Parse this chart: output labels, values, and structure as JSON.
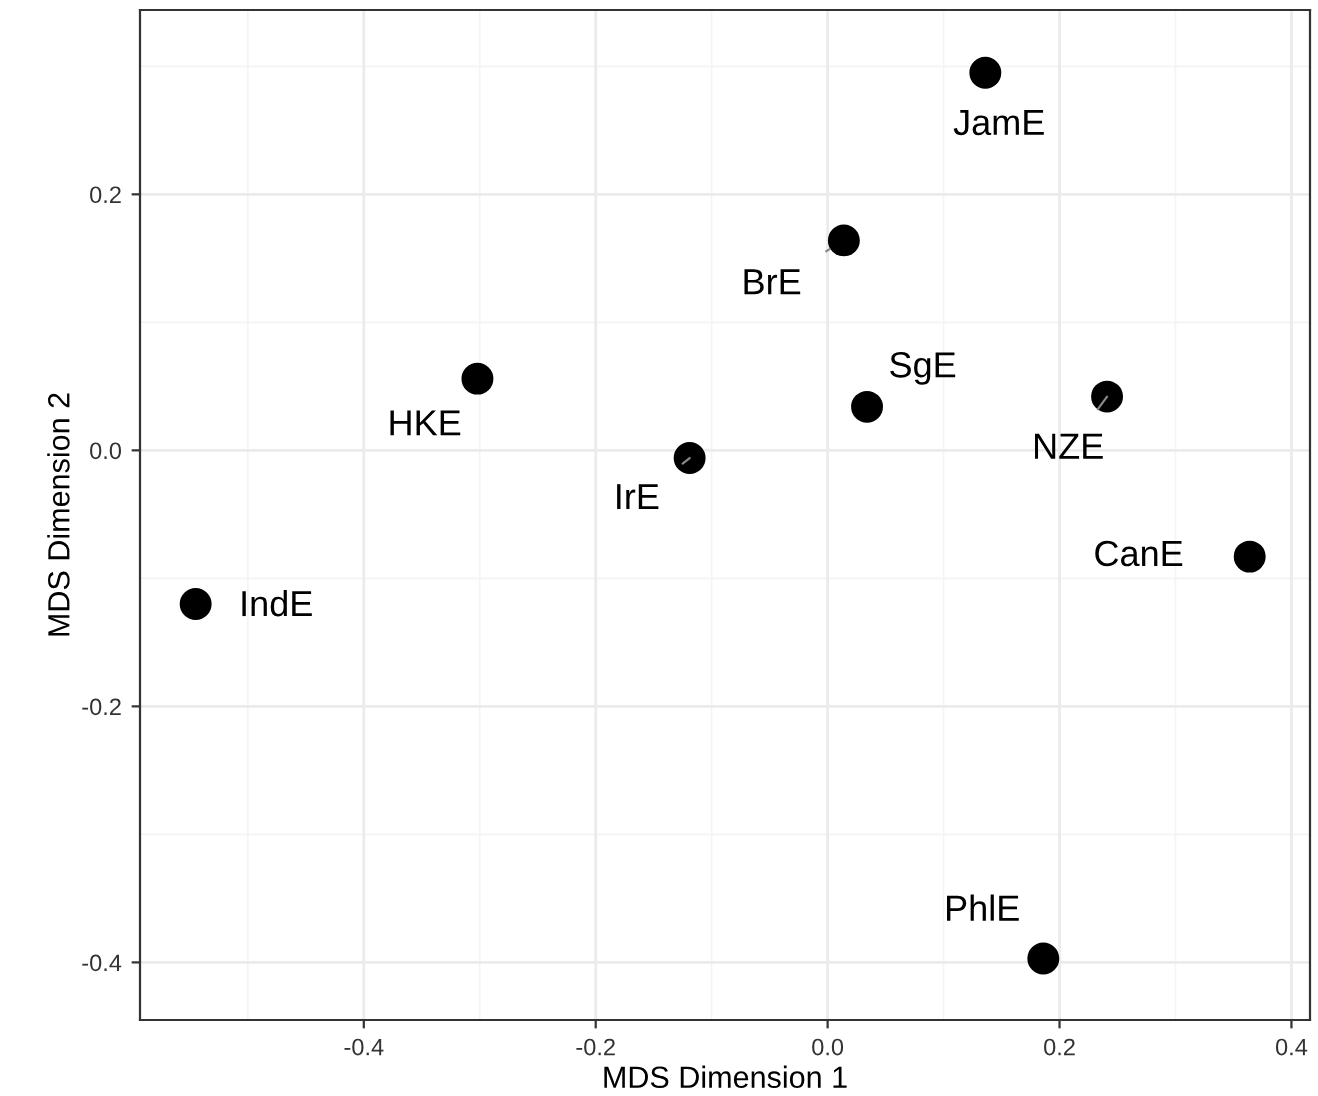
{
  "chart_data": {
    "type": "scatter",
    "xlabel": "MDS Dimension 1",
    "ylabel": "MDS Dimension 2",
    "series": [
      {
        "color": "#000000",
        "x": [
          0.136,
          0.014,
          0.034,
          0.241,
          -0.302,
          -0.119,
          0.364,
          -0.545,
          0.186
        ],
        "values": [
          0.295,
          0.164,
          0.034,
          0.042,
          0.056,
          -0.006,
          -0.083,
          -0.12,
          -0.397
        ],
        "value_labels": [
          "JamE",
          "BrE",
          "SgE",
          "NZE",
          "HKE",
          "IrE",
          "CanE",
          "IndE",
          "PhlE"
        ]
      }
    ],
    "xlim": [
      -0.593,
      0.416
    ],
    "ylim": [
      -0.445,
      0.344
    ],
    "xticks": [
      {
        "value": -0.4,
        "label": "-0.4"
      },
      {
        "value": -0.2,
        "label": "-0.2"
      },
      {
        "value": 0.0,
        "label": "0.0"
      },
      {
        "value": 0.2,
        "label": "0.2"
      },
      {
        "value": 0.4,
        "label": "0.4"
      }
    ],
    "yticks": [
      {
        "value": -0.4,
        "label": "-0.4"
      },
      {
        "value": -0.2,
        "label": "-0.2"
      },
      {
        "value": 0.0,
        "label": "0.0"
      },
      {
        "value": 0.2,
        "label": "0.2"
      }
    ],
    "grid": true,
    "marker": "circle"
  }
}
